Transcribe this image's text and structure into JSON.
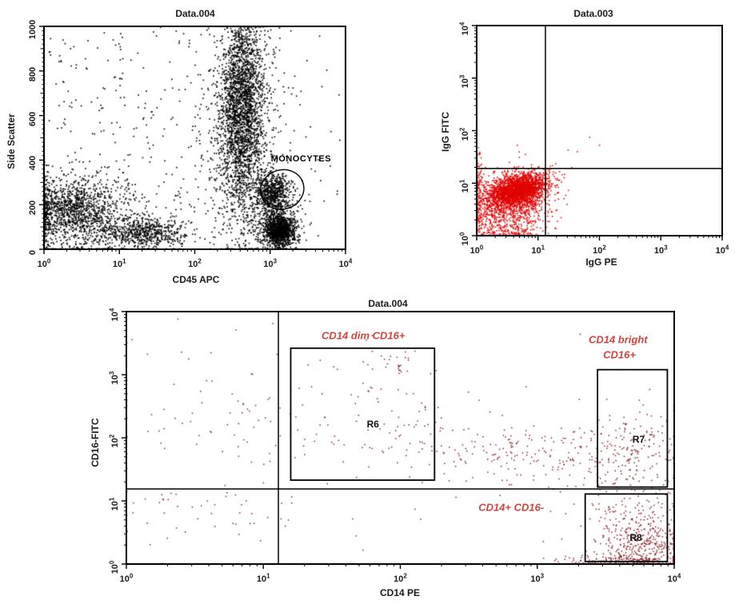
{
  "figure": {
    "background": "#ffffff",
    "accent_red": "#d2453f"
  },
  "chart_data": [
    {
      "id": "side-scatter-vs-cd45",
      "type": "scatter",
      "title": "Data.004",
      "xlabel": "CD45 APC",
      "ylabel": "Side Scatter",
      "x_scale": "log",
      "x_decades": 4,
      "xlim": [
        1,
        10000
      ],
      "y_scale": "linear",
      "ylim": [
        0,
        1000
      ],
      "x_ticks": [
        {
          "b": "10",
          "e": "0"
        },
        {
          "b": "10",
          "e": "1"
        },
        {
          "b": "10",
          "e": "2"
        },
        {
          "b": "10",
          "e": "3"
        },
        {
          "b": "10",
          "e": "4"
        }
      ],
      "y_ticks": [
        {
          "v": "0"
        },
        {
          "v": "200"
        },
        {
          "v": "400"
        },
        {
          "v": "600"
        },
        {
          "v": "800"
        },
        {
          "v": "1000"
        }
      ],
      "dot_color": "#000000",
      "dot_size": 1.7,
      "ellipse_gate": {
        "cx": 3.16,
        "cy": 268,
        "rx": 0.29,
        "ry": 88,
        "rot_deg": -18
      },
      "annotations": [
        {
          "text": "MONOCYTES",
          "x": 3.41,
          "y": 419,
          "color": "#000000",
          "cls": "mono-label"
        }
      ],
      "clusters": [
        {
          "type": "uniform",
          "n": 240,
          "x0": 0.05,
          "x1": 2.35,
          "y0": 30,
          "y1": 1000
        },
        {
          "type": "uniform",
          "n": 70,
          "x0": 2.35,
          "x1": 3.97,
          "y0": 120,
          "y1": 1000
        },
        {
          "n": 950,
          "cx": 0.55,
          "cy": 155,
          "sx": 0.4,
          "sy": 95
        },
        {
          "n": 420,
          "cx": 0.32,
          "cy": 185,
          "sx": 0.2,
          "sy": 55
        },
        {
          "n": 240,
          "cx": 0.02,
          "cy": 160,
          "sx": 0.05,
          "sy": 95
        },
        {
          "n": 620,
          "cx": 1.3,
          "cy": 75,
          "sx": 0.33,
          "sy": 33
        },
        {
          "n": 2400,
          "cx": 2.63,
          "cy": 630,
          "sx": 0.14,
          "sy": 245
        },
        {
          "n": 650,
          "cx": 2.6,
          "cy": 520,
          "sx": 0.3,
          "sy": 255
        },
        {
          "n": 620,
          "cx": 3.03,
          "cy": 255,
          "sx": 0.12,
          "sy": 48
        },
        {
          "n": 1150,
          "cx": 3.13,
          "cy": 85,
          "sx": 0.1,
          "sy": 36
        },
        {
          "n": 260,
          "cx": 3.08,
          "cy": 140,
          "sx": 0.19,
          "sy": 75
        }
      ]
    },
    {
      "id": "igg-fitc-vs-igg-pe",
      "type": "scatter",
      "title": "Data.003",
      "xlabel": "IgG PE",
      "ylabel": "IgG FITC",
      "x_scale": "log",
      "x_decades": 4,
      "xlim": [
        1,
        10000
      ],
      "y_scale": "log",
      "y_decades": 4,
      "ylim": [
        1,
        10000
      ],
      "x_ticks": [
        {
          "b": "10",
          "e": "0"
        },
        {
          "b": "10",
          "e": "1"
        },
        {
          "b": "10",
          "e": "2"
        },
        {
          "b": "10",
          "e": "3"
        },
        {
          "b": "10",
          "e": "4"
        }
      ],
      "y_ticks": [
        {
          "b": "10",
          "e": "0"
        },
        {
          "b": "10",
          "e": "1"
        },
        {
          "b": "10",
          "e": "2"
        },
        {
          "b": "10",
          "e": "3"
        },
        {
          "b": "10",
          "e": "4"
        }
      ],
      "dot_color": "#e10000",
      "dot_size": 1.6,
      "quadrant": {
        "x": 1.12,
        "y": 1.28
      },
      "clusters": [
        {
          "n": 2400,
          "cx": 0.67,
          "cy": 0.86,
          "sx": 0.23,
          "sy": 0.15,
          "rho": 0.35
        },
        {
          "n": 800,
          "cx": 0.55,
          "cy": 0.68,
          "sx": 0.33,
          "sy": 0.28,
          "rho": 0.2
        },
        {
          "n": 330,
          "cx": 0.45,
          "cy": 0.3,
          "sx": 0.38,
          "sy": 0.22
        },
        {
          "n": 160,
          "cx": 0.02,
          "cy": 0.75,
          "sx": 0.04,
          "sy": 0.38
        },
        {
          "n": 90,
          "cx": 0.5,
          "cy": 0.02,
          "sx": 0.32,
          "sy": 0.04
        },
        {
          "type": "points",
          "pts": [
            [
              1.49,
              1.63
            ],
            [
              1.64,
              1.6
            ],
            [
              1.84,
              1.87
            ],
            [
              1.29,
              1.37
            ],
            [
              1.35,
              1.22
            ],
            [
              1.2,
              1.32
            ],
            [
              1.55,
              1.3
            ],
            [
              2.0,
              1.72
            ]
          ]
        }
      ]
    },
    {
      "id": "cd16-fitc-vs-cd14-pe",
      "type": "scatter",
      "title": "Data.004",
      "xlabel": "CD14 PE",
      "ylabel": "CD16-FITC",
      "x_scale": "log",
      "x_decades": 4,
      "xlim": [
        1,
        10000
      ],
      "y_scale": "log",
      "y_decades": 4,
      "ylim": [
        1,
        10000
      ],
      "x_ticks": [
        {
          "b": "10",
          "e": "0"
        },
        {
          "b": "10",
          "e": "1"
        },
        {
          "b": "10",
          "e": "2"
        },
        {
          "b": "10",
          "e": "3"
        },
        {
          "b": "10",
          "e": "4"
        }
      ],
      "y_ticks": [
        {
          "b": "10",
          "e": "0"
        },
        {
          "b": "10",
          "e": "1"
        },
        {
          "b": "10",
          "e": "2"
        },
        {
          "b": "10",
          "e": "3"
        },
        {
          "b": "10",
          "e": "4"
        }
      ],
      "dot_color": "#7c1419",
      "dot_size": 1.5,
      "quadrant": {
        "x": 1.11,
        "y": 1.19
      },
      "gates": [
        {
          "name": "R6",
          "x1": 1.2,
          "x2": 2.25,
          "y1": 1.33,
          "y2": 3.42,
          "lx": 1.8,
          "ly": 2.24
        },
        {
          "name": "R7",
          "x1": 3.44,
          "x2": 3.95,
          "y1": 1.22,
          "y2": 3.08,
          "lx": 3.74,
          "ly": 2.0
        },
        {
          "name": "R8",
          "x1": 3.35,
          "x2": 3.95,
          "y1": 0.04,
          "y2": 1.11,
          "lx": 3.72,
          "ly": 0.44
        }
      ],
      "annotations": [
        {
          "text": "CD14 dim CD16+",
          "x": 1.73,
          "y": 3.63,
          "color": "#d2453f",
          "cls": "red-label"
        },
        {
          "text": "CD14 bright",
          "x": 3.59,
          "y": 3.57,
          "color": "#d2453f",
          "cls": "red-label"
        },
        {
          "text": "CD16+",
          "x": 3.6,
          "y": 3.33,
          "color": "#d2453f",
          "cls": "red-label"
        },
        {
          "text": "CD14+ CD16-",
          "x": 2.81,
          "y": 0.91,
          "color": "#d2453f",
          "cls": "red-label"
        }
      ],
      "clusters": [
        {
          "n": 60,
          "cx": 0.55,
          "cy": 2.55,
          "sx": 0.5,
          "sy": 0.6
        },
        {
          "n": 45,
          "cx": 0.55,
          "cy": 0.8,
          "sx": 0.42,
          "sy": 0.28
        },
        {
          "n": 75,
          "cx": 1.75,
          "cy": 2.4,
          "sx": 0.38,
          "sy": 0.6
        },
        {
          "n": 22,
          "cx": 2.0,
          "cy": 3.15,
          "sx": 0.13,
          "sy": 0.1
        },
        {
          "n": 170,
          "cx": 2.75,
          "cy": 1.78,
          "sx": 0.5,
          "sy": 0.24
        },
        {
          "n": 80,
          "cx": 3.35,
          "cy": 1.6,
          "sx": 0.25,
          "sy": 0.3
        },
        {
          "n": 160,
          "cx": 3.72,
          "cy": 1.75,
          "sx": 0.17,
          "sy": 0.4
        },
        {
          "n": 120,
          "cx": 3.7,
          "cy": 0.75,
          "sx": 0.19,
          "sy": 0.26
        },
        {
          "n": 300,
          "cx": 3.76,
          "cy": 0.3,
          "sx": 0.16,
          "sy": 0.22
        },
        {
          "n": 260,
          "cx": 3.7,
          "cy": 0.04,
          "sx": 0.24,
          "sy": 0.05
        },
        {
          "type": "uniform",
          "n": 40,
          "x0": 0.15,
          "x1": 3.9,
          "y0": 0.2,
          "y1": 3.75
        }
      ]
    }
  ]
}
